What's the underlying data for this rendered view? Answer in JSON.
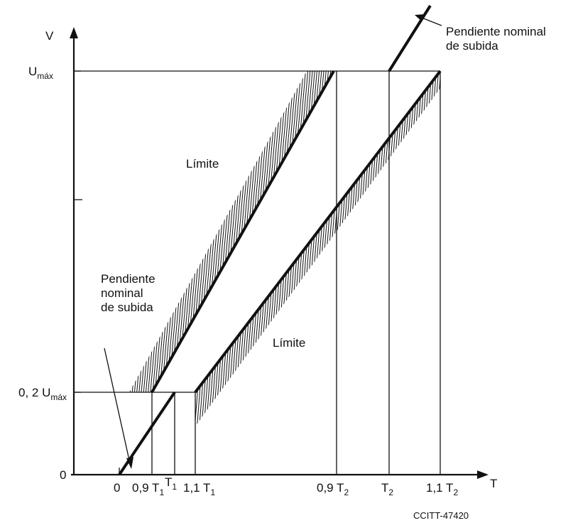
{
  "axes": {
    "y_label": "V",
    "x_label": "T",
    "y_ticks": {
      "umax": {
        "main": "U",
        "sub": "máx"
      },
      "low": {
        "main": "0, 2 U",
        "sub": "máx"
      },
      "zero": "0"
    },
    "x_ticks": {
      "zero": "0",
      "t09_1": {
        "main": "0,9 T",
        "sub": "1"
      },
      "t1": {
        "main": "T",
        "sub": "1"
      },
      "t11_1": {
        "main": "1,1 T",
        "sub": "1"
      },
      "t09_2": {
        "main": "0,9 T",
        "sub": "2"
      },
      "t2": {
        "main": "T",
        "sub": "2"
      },
      "t11_2": {
        "main": "1,1 T",
        "sub": "2"
      }
    }
  },
  "annotations": {
    "limit_upper": "Límite",
    "limit_lower": "Límite",
    "nominal_lower": [
      "Pendiente",
      "nominal",
      "de subida"
    ],
    "nominal_upper": [
      "Pendiente nominal",
      "de subida"
    ]
  },
  "figure_code": "CCITT-47420"
}
